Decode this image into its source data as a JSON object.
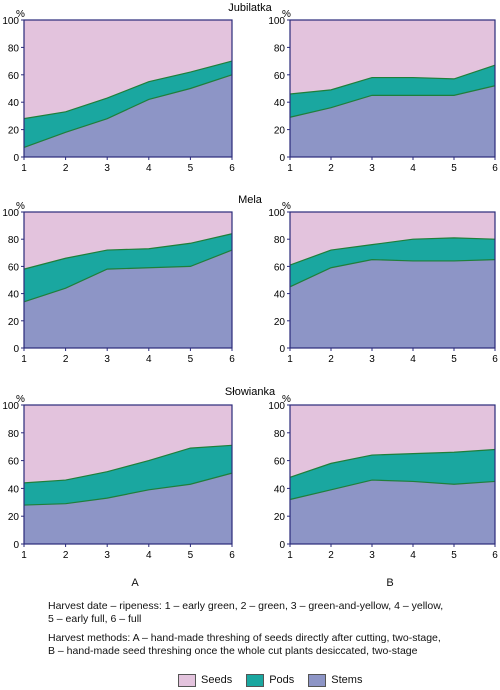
{
  "chart_data": {
    "type": "area",
    "stacked": true,
    "y_unit": "%",
    "x": [
      1,
      2,
      3,
      4,
      5,
      6
    ],
    "ylim": [
      0,
      100
    ],
    "yticks": [
      0,
      20,
      40,
      60,
      80,
      100
    ],
    "series_names": [
      "Seeds",
      "Pods",
      "Stems"
    ],
    "colors": {
      "Seeds": "#e3c3dd",
      "Pods": "#1aa7a0",
      "Stems": "#8d95c6",
      "line": "#1f7f3a",
      "axis": "#2a2a7a"
    },
    "groups": [
      {
        "title": "Jubilatka",
        "panels": [
          {
            "column": "A",
            "stems": [
              7,
              18,
              28,
              42,
              50,
              60
            ],
            "stems_plus_pods": [
              28,
              33,
              43,
              55,
              62,
              70
            ]
          },
          {
            "column": "B",
            "stems": [
              29,
              36,
              45,
              45,
              45,
              52
            ],
            "stems_plus_pods": [
              46,
              49,
              58,
              58,
              57,
              67
            ]
          }
        ]
      },
      {
        "title": "Mela",
        "panels": [
          {
            "column": "A",
            "stems": [
              34,
              44,
              58,
              59,
              60,
              72
            ],
            "stems_plus_pods": [
              58,
              66,
              72,
              73,
              77,
              84
            ]
          },
          {
            "column": "B",
            "stems": [
              45,
              59,
              65,
              64,
              64,
              65
            ],
            "stems_plus_pods": [
              61,
              72,
              76,
              80,
              81,
              80
            ]
          }
        ]
      },
      {
        "title": "Słowianka",
        "panels": [
          {
            "column": "A",
            "stems": [
              28,
              29,
              33,
              39,
              43,
              51
            ],
            "stems_plus_pods": [
              44,
              46,
              52,
              60,
              69,
              71
            ]
          },
          {
            "column": "B",
            "stems": [
              32,
              39,
              46,
              45,
              43,
              45
            ],
            "stems_plus_pods": [
              48,
              58,
              64,
              65,
              66,
              68
            ]
          }
        ]
      }
    ]
  },
  "column_labels": [
    "A",
    "B"
  ],
  "notes": {
    "ripeness_line1": "Harvest date – ripeness: 1 – early green, 2 – green, 3 – green-and-yellow, 4 – yellow,",
    "ripeness_line2": "5 – early full, 6 – full",
    "methods_line1": "Harvest methods: A – hand-made threshing of seeds directly after cutting, two-stage,",
    "methods_line2": "B – hand-made seed threshing once the whole cut plants desiccated, two-stage"
  },
  "legend": {
    "seeds": "Seeds",
    "pods": "Pods",
    "stems": "Stems"
  }
}
